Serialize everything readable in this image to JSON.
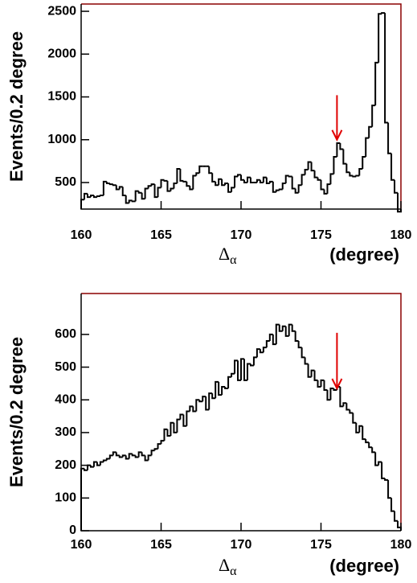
{
  "chart_data": [
    {
      "type": "histogram",
      "y_label": "Events/0.2 degree",
      "x_label": "Δ",
      "x_label_sub": "α",
      "x_unit": "(degree)",
      "color": "#000000",
      "frame_color": "#8b0000",
      "xlim": [
        160,
        180
      ],
      "xticks": [
        160,
        165,
        170,
        175,
        180
      ],
      "ylim": [
        190,
        2585
      ],
      "yticks": [
        500,
        1000,
        1500,
        2000,
        2500
      ],
      "bins": [
        160,
        160.2,
        160.4,
        160.6,
        160.8,
        161,
        161.2,
        161.4,
        161.6,
        161.8,
        162,
        162.2,
        162.4,
        162.6,
        162.8,
        163,
        163.2,
        163.4,
        163.6,
        163.8,
        164,
        164.2,
        164.4,
        164.6,
        164.8,
        165,
        165.2,
        165.4,
        165.6,
        165.8,
        166,
        166.2,
        166.4,
        166.6,
        166.8,
        167,
        167.2,
        167.4,
        167.6,
        167.8,
        168,
        168.2,
        168.4,
        168.6,
        168.8,
        169,
        169.2,
        169.4,
        169.6,
        169.8,
        170,
        170.2,
        170.4,
        170.6,
        170.8,
        171,
        171.2,
        171.4,
        171.6,
        171.8,
        172,
        172.2,
        172.4,
        172.6,
        172.8,
        173,
        173.2,
        173.4,
        173.6,
        173.8,
        174,
        174.2,
        174.4,
        174.6,
        174.8,
        175,
        175.2,
        175.4,
        175.6,
        175.8,
        176,
        176.2,
        176.4,
        176.6,
        176.8,
        177,
        177.2,
        177.4,
        177.6,
        177.8,
        178,
        178.2,
        178.4,
        178.6,
        178.8,
        179,
        179.2,
        179.4,
        179.6,
        179.8,
        180
      ],
      "values": [
        300,
        370,
        330,
        350,
        330,
        340,
        350,
        510,
        490,
        480,
        470,
        420,
        450,
        350,
        260,
        290,
        280,
        400,
        380,
        310,
        430,
        460,
        480,
        330,
        440,
        530,
        520,
        400,
        430,
        490,
        660,
        520,
        510,
        460,
        420,
        580,
        610,
        690,
        690,
        690,
        610,
        510,
        470,
        540,
        470,
        490,
        390,
        440,
        570,
        590,
        530,
        500,
        560,
        500,
        500,
        530,
        500,
        560,
        490,
        510,
        390,
        410,
        420,
        490,
        580,
        570,
        430,
        380,
        470,
        590,
        650,
        740,
        640,
        560,
        530,
        420,
        370,
        480,
        600,
        800,
        960,
        890,
        720,
        620,
        580,
        570,
        580,
        660,
        800,
        1020,
        1150,
        1400,
        1900,
        2470,
        2480,
        1200,
        840,
        530,
        380,
        160
      ],
      "arrow": {
        "x": 176,
        "y_start": 1520,
        "y_end": 1000,
        "color": "#e00000"
      }
    },
    {
      "type": "histogram",
      "y_label": "Events/0.2 degree",
      "x_label": "Δ",
      "x_label_sub": "α",
      "x_unit": "(degree)",
      "color": "#000000",
      "frame_color": "#8b0000",
      "xlim": [
        160,
        180
      ],
      "xticks": [
        160,
        165,
        170,
        175,
        180
      ],
      "ylim": [
        0,
        725
      ],
      "yticks": [
        0,
        100,
        200,
        300,
        400,
        500,
        600
      ],
      "bins": [
        160,
        160.2,
        160.4,
        160.6,
        160.8,
        161,
        161.2,
        161.4,
        161.6,
        161.8,
        162,
        162.2,
        162.4,
        162.6,
        162.8,
        163,
        163.2,
        163.4,
        163.6,
        163.8,
        164,
        164.2,
        164.4,
        164.6,
        164.8,
        165,
        165.2,
        165.4,
        165.6,
        165.8,
        166,
        166.2,
        166.4,
        166.6,
        166.8,
        167,
        167.2,
        167.4,
        167.6,
        167.8,
        168,
        168.2,
        168.4,
        168.6,
        168.8,
        169,
        169.2,
        169.4,
        169.6,
        169.8,
        170,
        170.2,
        170.4,
        170.6,
        170.8,
        171,
        171.2,
        171.4,
        171.6,
        171.8,
        172,
        172.2,
        172.4,
        172.6,
        172.8,
        173,
        173.2,
        173.4,
        173.6,
        173.8,
        174,
        174.2,
        174.4,
        174.6,
        174.8,
        175,
        175.2,
        175.4,
        175.6,
        175.8,
        176,
        176.2,
        176.4,
        176.6,
        176.8,
        177,
        177.2,
        177.4,
        177.6,
        177.8,
        178,
        178.2,
        178.4,
        178.6,
        178.8,
        179,
        179.2,
        179.4,
        179.6,
        179.8,
        180
      ],
      "values": [
        190,
        185,
        200,
        195,
        210,
        200,
        210,
        215,
        220,
        230,
        240,
        230,
        225,
        230,
        220,
        235,
        230,
        225,
        240,
        230,
        215,
        230,
        245,
        250,
        265,
        275,
        310,
        290,
        330,
        300,
        340,
        355,
        320,
        365,
        380,
        365,
        400,
        395,
        410,
        370,
        420,
        405,
        455,
        415,
        440,
        435,
        470,
        480,
        520,
        460,
        525,
        460,
        510,
        505,
        530,
        555,
        545,
        560,
        580,
        600,
        570,
        630,
        610,
        625,
        595,
        630,
        610,
        580,
        560,
        530,
        510,
        470,
        490,
        460,
        440,
        460,
        430,
        400,
        435,
        430,
        440,
        380,
        390,
        370,
        360,
        330,
        300,
        320,
        280,
        270,
        255,
        240,
        200,
        210,
        160,
        155,
        100,
        60,
        30,
        10
      ],
      "arrow": {
        "x": 176,
        "y_start": 605,
        "y_end": 435,
        "color": "#e00000"
      }
    }
  ]
}
